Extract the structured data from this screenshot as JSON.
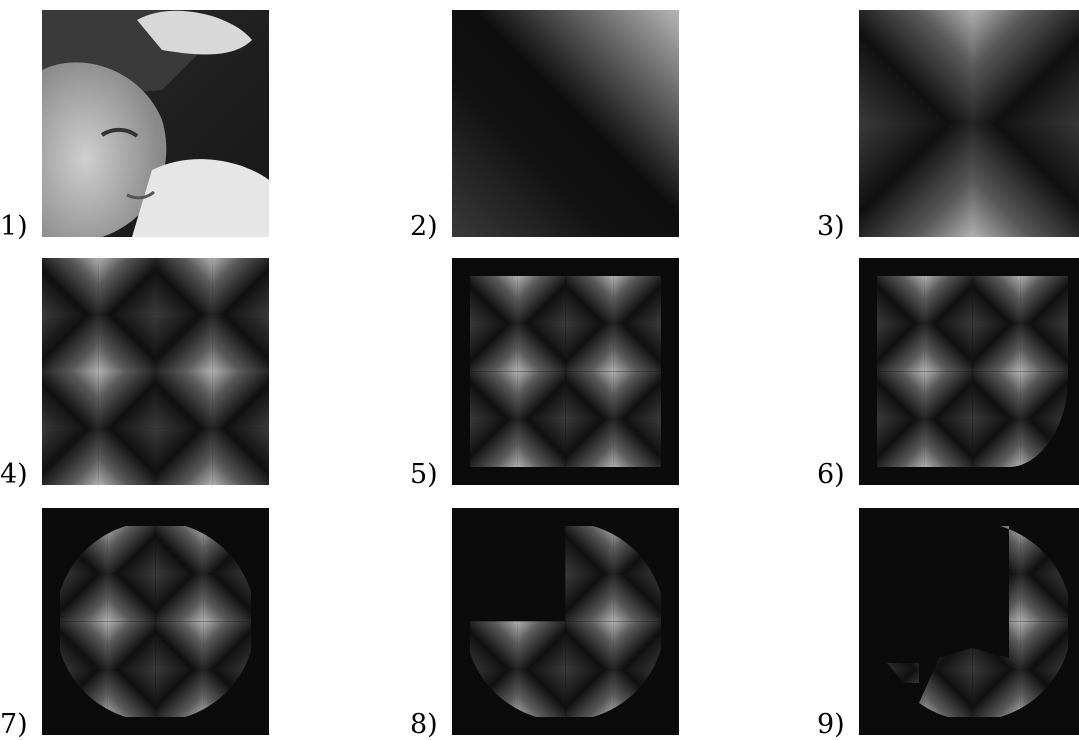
{
  "panels": [
    {
      "label": "1)",
      "kind": "photo-face"
    },
    {
      "label": "2)",
      "kind": "zoom-crop"
    },
    {
      "label": "3)",
      "kind": "quad-mirror"
    },
    {
      "label": "4)",
      "kind": "tile-2x2"
    },
    {
      "label": "5)",
      "kind": "tile-bordered"
    },
    {
      "label": "6)",
      "kind": "tile-bordered-partial"
    },
    {
      "label": "7)",
      "kind": "circular-mask"
    },
    {
      "label": "8)",
      "kind": "circular-mask-partial"
    },
    {
      "label": "9)",
      "kind": "fragments"
    }
  ]
}
